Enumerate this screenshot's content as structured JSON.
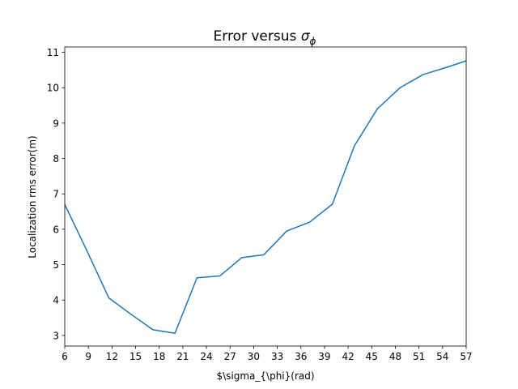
{
  "chart_data": {
    "type": "line",
    "title": "Error versus ",
    "title_symbol": "σ",
    "title_subscript": "ϕ",
    "xlabel": "$\\sigma_{\\phi}(rad)",
    "ylabel": "Localization rms error(m)",
    "xlim": [
      6,
      57
    ],
    "ylim": [
      2.7,
      11.15
    ],
    "xticks": [
      6,
      9,
      12,
      15,
      18,
      21,
      24,
      27,
      30,
      33,
      36,
      39,
      42,
      45,
      48,
      51,
      54,
      57
    ],
    "yticks": [
      3,
      4,
      5,
      6,
      7,
      8,
      9,
      10,
      11
    ],
    "grid": false,
    "series": [
      {
        "color": "#1f77b4",
        "x": [
          6,
          8.8,
          11.6,
          14.4,
          17.2,
          20,
          22.8,
          25.7,
          28.5,
          31.3,
          34.2,
          37.1,
          40.0,
          42.8,
          45.7,
          48.6,
          51.5,
          54.3,
          57
        ],
        "y": [
          6.7,
          5.4,
          4.06,
          3.6,
          3.16,
          3.06,
          4.63,
          4.68,
          5.2,
          5.28,
          5.95,
          6.2,
          6.71,
          8.36,
          9.4,
          10.0,
          10.37,
          10.56,
          10.76
        ]
      }
    ]
  }
}
